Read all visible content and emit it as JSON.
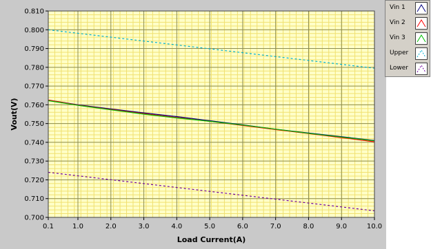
{
  "chart_data": {
    "type": "line",
    "title": "",
    "xlabel": "Load Current(A)",
    "ylabel": "Vout(V)",
    "xlim": [
      0.1,
      10.0
    ],
    "ylim": [
      0.7,
      0.81
    ],
    "x_ticks": [
      0.1,
      1.0,
      2.0,
      3.0,
      4.0,
      5.0,
      6.0,
      7.0,
      8.0,
      9.0,
      10.0
    ],
    "x_tick_labels": [
      "0.1",
      "1.0",
      "2.0",
      "3.0",
      "4.0",
      "5.0",
      "6.0",
      "7.0",
      "8.0",
      "9.0",
      "10.0"
    ],
    "y_ticks": [
      0.7,
      0.71,
      0.72,
      0.73,
      0.74,
      0.75,
      0.76,
      0.77,
      0.78,
      0.79,
      0.8,
      0.81
    ],
    "y_tick_labels": [
      "0.700",
      "0.710",
      "0.720",
      "0.730",
      "0.740",
      "0.750",
      "0.760",
      "0.770",
      "0.780",
      "0.790",
      "0.800",
      "0.810"
    ],
    "grid": true,
    "plot_background": "#ffffc8",
    "grid_major_color": "#8c8c50",
    "grid_minor_color": "#f0e070",
    "legend_placement": "right",
    "series": [
      {
        "name": "Vin 1",
        "color": "#000080",
        "dash": false,
        "x": [
          0.1,
          1.0,
          2.0,
          3.0,
          4.0,
          5.0,
          6.0,
          7.0,
          8.0,
          9.0,
          10.0
        ],
        "y": [
          0.7625,
          0.76,
          0.7578,
          0.7557,
          0.7537,
          0.7515,
          0.7493,
          0.747,
          0.745,
          0.743,
          0.741
        ]
      },
      {
        "name": "Vin 2",
        "color": "#ff0000",
        "dash": false,
        "x": [
          0.1,
          1.0,
          2.0,
          3.0,
          4.0,
          5.0,
          6.0,
          7.0,
          8.0,
          9.0,
          10.0
        ],
        "y": [
          0.7625,
          0.7598,
          0.7575,
          0.7553,
          0.7532,
          0.7512,
          0.749,
          0.7468,
          0.7447,
          0.7425,
          0.7403
        ]
      },
      {
        "name": "Vin 3",
        "color": "#00c000",
        "dash": false,
        "x": [
          0.1,
          1.0,
          2.0,
          3.0,
          4.0,
          5.0,
          6.0,
          7.0,
          8.0,
          9.0,
          10.0
        ],
        "y": [
          0.7622,
          0.7597,
          0.7573,
          0.755,
          0.753,
          0.7512,
          0.7492,
          0.747,
          0.7448,
          0.7428,
          0.7408
        ]
      },
      {
        "name": "Upper",
        "color": "#00b0d0",
        "dash": true,
        "x": [
          0.1,
          10.0
        ],
        "y": [
          0.8,
          0.7795
        ]
      },
      {
        "name": "Lower",
        "color": "#7000a0",
        "dash": true,
        "x": [
          0.1,
          10.0
        ],
        "y": [
          0.724,
          0.7035
        ]
      }
    ]
  }
}
